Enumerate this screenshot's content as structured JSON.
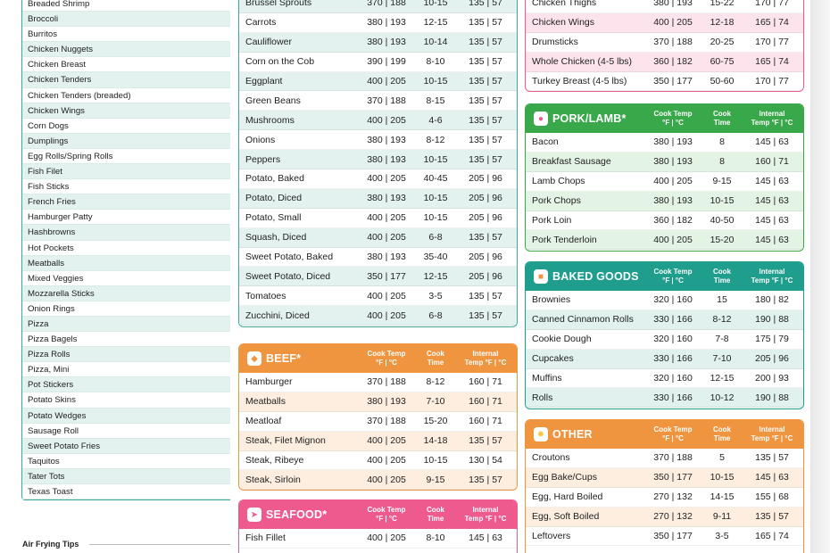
{
  "left_list": [
    "Breaded Shrimp",
    "Broccoli",
    "Burritos",
    "Chicken Nuggets",
    "Chicken Breast",
    "Chicken Tenders",
    "Chicken Tenders (breaded)",
    "Chicken Wings",
    "Corn Dogs",
    "Dumplings",
    "Egg Rolls/Spring Rolls",
    "Fish Filet",
    "Fish Sticks",
    "French Fries",
    "Hamburger Patty",
    "Hashbrowns",
    "Hot Pockets",
    "Meatballs",
    "Mixed Veggies",
    "Mozzarella Sticks",
    "Onion Rings",
    "Pizza",
    "Pizza Bagels",
    "Pizza Rolls",
    "Pizza, Mini",
    "Pot Stickers",
    "Potato Skins",
    "Potato Wedges",
    "Sausage Roll",
    "Sweet Potato Fries",
    "Taquitos",
    "Tater Tots",
    "Texas Toast"
  ],
  "tips_title": "Air Frying Tips",
  "headers": {
    "cook_temp": [
      "Cook Temp",
      "°F | °C"
    ],
    "cook_time": [
      "Cook",
      "Time"
    ],
    "internal": [
      "Internal",
      "Temp °F | °C"
    ]
  },
  "colors": {
    "veg": "#3aa89a",
    "veg_alt": "#e3f2ef",
    "beef": "#f0953f",
    "beef_alt": "#fdeee0",
    "seafood": "#ee5a8e",
    "chicken": "#ee5a8e",
    "chicken_alt": "#fde3ec",
    "pork": "#39a84a",
    "pork_alt": "#e3f3e4",
    "baked": "#1f9e8e",
    "baked_alt": "#e0f1ee",
    "other": "#f0953f",
    "other_alt": "#fdeee0"
  },
  "vegetables": [
    [
      "Brussel Sprouts",
      "370 | 188",
      "10-15",
      "135 | 57"
    ],
    [
      "Carrots",
      "380 | 193",
      "12-15",
      "135 | 57"
    ],
    [
      "Cauliflower",
      "380 | 193",
      "10-14",
      "135 | 57"
    ],
    [
      "Corn on the Cob",
      "390 | 199",
      "8-10",
      "135 | 57"
    ],
    [
      "Eggplant",
      "400 | 205",
      "10-15",
      "135 | 57"
    ],
    [
      "Green Beans",
      "370 | 188",
      "8-15",
      "135 | 57"
    ],
    [
      "Mushrooms",
      "400 | 205",
      "4-6",
      "135 | 57"
    ],
    [
      "Onions",
      "380 | 193",
      "8-12",
      "135 | 57"
    ],
    [
      "Peppers",
      "380 | 193",
      "10-15",
      "135 | 57"
    ],
    [
      "Potato, Baked",
      "400 | 205",
      "40-45",
      "205 | 96"
    ],
    [
      "Potato, Diced",
      "380 | 193",
      "10-15",
      "205 | 96"
    ],
    [
      "Potato, Small",
      "400 | 205",
      "10-15",
      "205 | 96"
    ],
    [
      "Squash, Diced",
      "400 | 205",
      "6-8",
      "135 | 57"
    ],
    [
      "Sweet Potato, Baked",
      "380 | 193",
      "35-40",
      "205 | 96"
    ],
    [
      "Sweet Potato, Diced",
      "350 | 177",
      "12-15",
      "205 | 96"
    ],
    [
      "Tomatoes",
      "400 | 205",
      "3-5",
      "135 | 57"
    ],
    [
      "Zucchini, Diced",
      "400 | 205",
      "6-8",
      "135 | 57"
    ]
  ],
  "beef": {
    "title": "BEEF*",
    "rows": [
      [
        "Hamburger",
        "370 | 188",
        "8-12",
        "160 | 71"
      ],
      [
        "Meatballs",
        "380 | 193",
        "7-10",
        "160 | 71"
      ],
      [
        "Meatloaf",
        "370 | 188",
        "15-20",
        "160 | 71"
      ],
      [
        "Steak, Filet Mignon",
        "400 | 205",
        "14-18",
        "135 | 57"
      ],
      [
        "Steak, Ribeye",
        "400 | 205",
        "10-15",
        "130 | 54"
      ],
      [
        "Steak, Sirloin",
        "400 | 205",
        "9-15",
        "135 | 57"
      ]
    ]
  },
  "seafood": {
    "title": "SEAFOOD*",
    "rows": [
      [
        "Fish Fillet",
        "400 | 205",
        "8-10",
        "145 | 63"
      ]
    ]
  },
  "chicken": [
    [
      "Chicken Thighs",
      "380 | 193",
      "15-22",
      "170 | 77"
    ],
    [
      "Chicken Wings",
      "400 | 205",
      "12-18",
      "165 | 74"
    ],
    [
      "Drumsticks",
      "370 | 188",
      "20-25",
      "170 | 77"
    ],
    [
      "Whole Chicken (4-5 lbs)",
      "360 | 182",
      "60-75",
      "165 | 74"
    ],
    [
      "Turkey Breast (4-5 lbs)",
      "350 | 177",
      "50-60",
      "170 | 77"
    ]
  ],
  "pork": {
    "title": "PORK/LAMB*",
    "rows": [
      [
        "Bacon",
        "380 | 193",
        "8",
        "145 | 63"
      ],
      [
        "Breakfast Sausage",
        "380 | 193",
        "8",
        "160 | 71"
      ],
      [
        "Lamb Chops",
        "400 | 205",
        "9-15",
        "145 | 63"
      ],
      [
        "Pork Chops",
        "380 | 193",
        "10-15",
        "145 | 63"
      ],
      [
        "Pork Loin",
        "360 | 182",
        "40-50",
        "145 | 63"
      ],
      [
        "Pork Tenderloin",
        "400 | 205",
        "15-20",
        "145 | 63"
      ]
    ]
  },
  "baked": {
    "title": "BAKED GOODS",
    "rows": [
      [
        "Brownies",
        "320 | 160",
        "15",
        "180 | 82"
      ],
      [
        "Canned Cinnamon Rolls",
        "330 | 166",
        "8-12",
        "190 | 88"
      ],
      [
        "Cookie Dough",
        "320 | 160",
        "7-8",
        "175 | 79"
      ],
      [
        "Cupcakes",
        "330 | 166",
        "7-10",
        "205 | 96"
      ],
      [
        "Muffins",
        "320 | 160",
        "12-15",
        "200 | 93"
      ],
      [
        "Rolls",
        "330 | 166",
        "10-12",
        "190 | 88"
      ]
    ]
  },
  "other": {
    "title": "OTHER",
    "rows": [
      [
        "Croutons",
        "370 | 188",
        "5",
        "135 | 57"
      ],
      [
        "Egg Bake/Cups",
        "350 | 177",
        "10-15",
        "145 | 63"
      ],
      [
        "Egg, Hard Boiled",
        "270 | 132",
        "14-15",
        "155 | 68"
      ],
      [
        "Egg, Soft Boiled",
        "270 | 132",
        "9-11",
        "135 | 57"
      ],
      [
        "Leftovers",
        "350 | 177",
        "3-5",
        "165 | 74"
      ]
    ]
  }
}
